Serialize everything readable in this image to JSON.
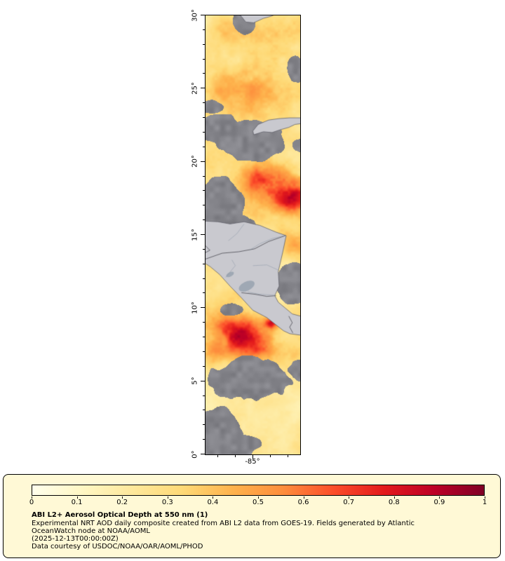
{
  "figure": {
    "x_tick_label": "-85°",
    "y_ticks": [
      {
        "lat": 30,
        "label": "30°"
      },
      {
        "lat": 25,
        "label": "25°"
      },
      {
        "lat": 20,
        "label": "20°"
      },
      {
        "lat": 15,
        "label": "15°"
      },
      {
        "lat": 10,
        "label": "10°"
      },
      {
        "lat": 5,
        "label": "5°"
      },
      {
        "lat": 0,
        "label": "0°"
      }
    ]
  },
  "colorbar": {
    "ticks": [
      "0",
      "0.1",
      "0.2",
      "0.3",
      "0.4",
      "0.5",
      "0.6",
      "0.7",
      "0.8",
      "0.9",
      "1"
    ],
    "gradient_stops": [
      "#FFFFEC",
      "#FFF7C4",
      "#FEE89B",
      "#FED976",
      "#FEB24C",
      "#FD8D3C",
      "#FC4E2A",
      "#E31A1C",
      "#BD0026",
      "#800026"
    ]
  },
  "caption": {
    "title": "ABI L2+ Aerosol Optical Depth at 550 nm (1)",
    "description_line1": "Experimental NRT AOD daily composite created from ABI L2 data from GOES-19. Fields generated by Atlantic",
    "description_line2": "OceanWatch node at NOAA/AOML",
    "timestamp": "(2025-12-13T00:00:00Z)",
    "credit": "Data courtesy of USDOC/NOAA/OAR/AOML/PHOD"
  },
  "colors": {
    "panel_background": "#FFF9D6",
    "missing_data_gray": "#848488",
    "land_gray": "#C9C9CF",
    "water_lake_gray": "#9FA8B4",
    "map_border": "#000000"
  }
}
